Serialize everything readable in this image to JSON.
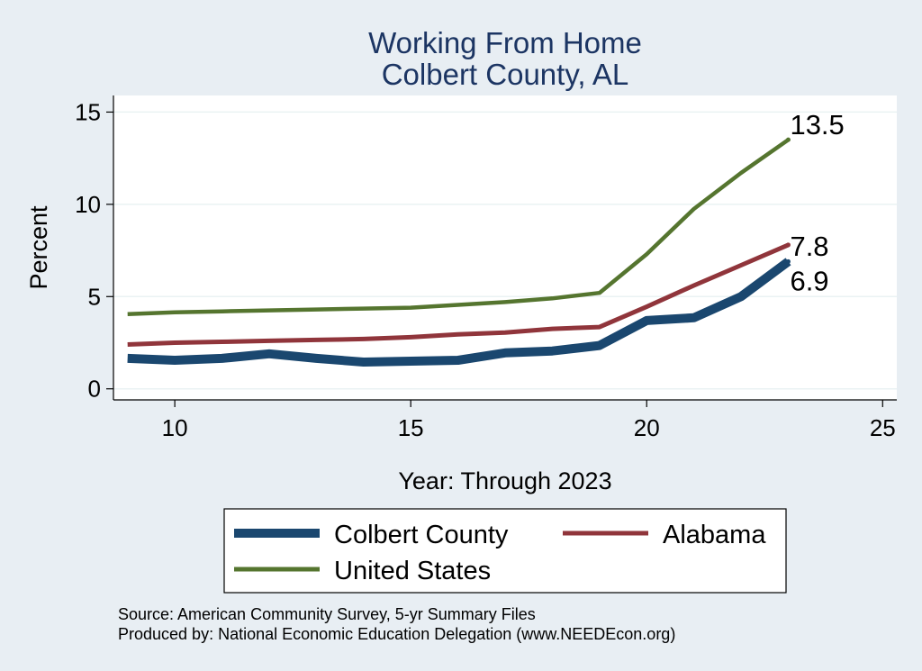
{
  "chart_data": {
    "type": "line",
    "title": [
      "Working From Home",
      "Colbert County, AL"
    ],
    "xlabel": "Year: Through 2023",
    "ylabel": "Percent",
    "xlim": [
      8.7,
      25.3
    ],
    "ylim": [
      -0.6,
      15.9
    ],
    "xticks": [
      10,
      15,
      20,
      25
    ],
    "yticks": [
      0,
      5,
      10,
      15
    ],
    "grid": true,
    "legend_position": "bottom",
    "series": [
      {
        "name": "Colbert County",
        "color": "#1a476f",
        "x": [
          9,
          10,
          11,
          12,
          13,
          14,
          15,
          16,
          17,
          18,
          19,
          20,
          21,
          22,
          23
        ],
        "y": [
          1.65,
          1.55,
          1.65,
          1.9,
          1.65,
          1.45,
          1.5,
          1.55,
          1.95,
          2.05,
          2.35,
          3.7,
          3.85,
          5.0,
          6.9
        ],
        "end_label": "6.9"
      },
      {
        "name": "Alabama",
        "color": "#90353b",
        "x": [
          9,
          10,
          11,
          12,
          13,
          14,
          15,
          16,
          17,
          18,
          19,
          20,
          21,
          22,
          23
        ],
        "y": [
          2.4,
          2.5,
          2.55,
          2.6,
          2.65,
          2.7,
          2.8,
          2.95,
          3.05,
          3.25,
          3.35,
          4.45,
          5.6,
          6.7,
          7.8
        ],
        "end_label": "7.8"
      },
      {
        "name": "United States",
        "color": "#55752f",
        "x": [
          9,
          10,
          11,
          12,
          13,
          14,
          15,
          16,
          17,
          18,
          19,
          20,
          21,
          22,
          23
        ],
        "y": [
          4.05,
          4.15,
          4.2,
          4.25,
          4.3,
          4.35,
          4.4,
          4.55,
          4.7,
          4.9,
          5.2,
          7.3,
          9.75,
          11.7,
          13.5
        ],
        "end_label": "13.5"
      }
    ],
    "notes": [
      "Source: American Community Survey, 5-yr Summary Files",
      "Produced by: National Economic Education Delegation (www.NEEDEcon.org)"
    ]
  }
}
